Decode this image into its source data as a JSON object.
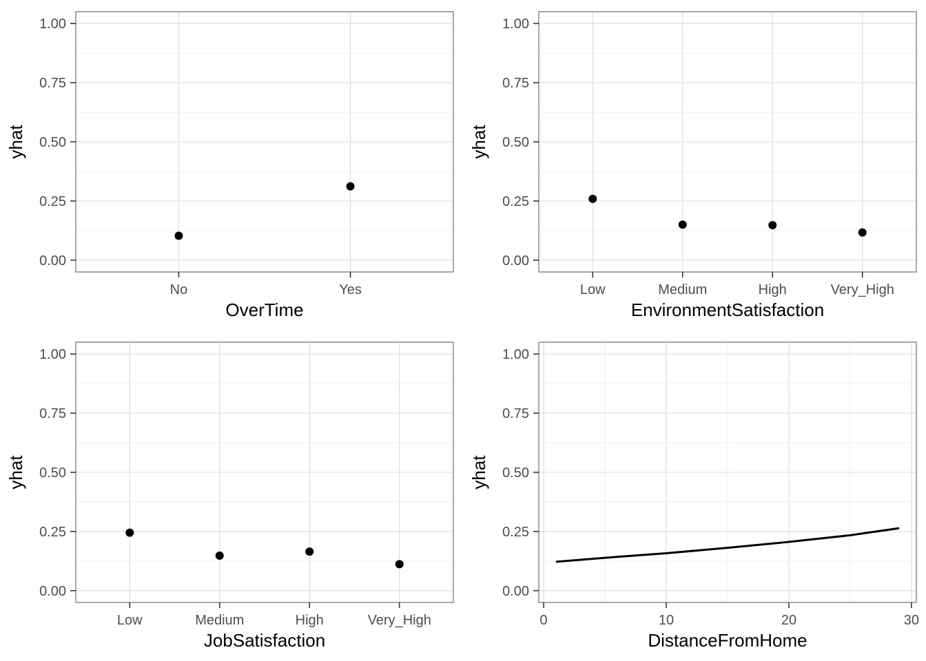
{
  "page": {
    "title": "Partial dependence plots grid",
    "background": "#ffffff"
  },
  "theme": {
    "panel_background": "#ffffff",
    "panel_border_color": "#919191",
    "grid_major_color": "#e0e0e0",
    "grid_minor_color": "#ececec",
    "tick_mark_color": "#333333",
    "tick_label_color": "#4d4d4d",
    "axis_title_color": "#000000",
    "point_color": "#000000",
    "line_color": "#000000"
  },
  "chart_data": [
    {
      "type": "scatter",
      "name": "overtime-pdp",
      "x_type": "categorical",
      "categories": [
        "No",
        "Yes"
      ],
      "values": [
        0.103,
        0.312
      ],
      "title": "",
      "xlabel": "OverTime",
      "ylabel": "yhat",
      "ylim": [
        0,
        1
      ],
      "yticks": [
        0.0,
        0.25,
        0.5,
        0.75,
        1.0
      ],
      "ytick_labels": [
        "0.00",
        "0.25",
        "0.50",
        "0.75",
        "1.00"
      ],
      "yminor": [
        0.125,
        0.375,
        0.625,
        0.875
      ],
      "grid": "on",
      "legend": "none"
    },
    {
      "type": "scatter",
      "name": "environment-satisfaction-pdp",
      "x_type": "categorical",
      "categories": [
        "Low",
        "Medium",
        "High",
        "Very_High"
      ],
      "values": [
        0.259,
        0.15,
        0.148,
        0.117
      ],
      "title": "",
      "xlabel": "EnvironmentSatisfaction",
      "ylabel": "yhat",
      "ylim": [
        0,
        1
      ],
      "yticks": [
        0.0,
        0.25,
        0.5,
        0.75,
        1.0
      ],
      "ytick_labels": [
        "0.00",
        "0.25",
        "0.50",
        "0.75",
        "1.00"
      ],
      "yminor": [
        0.125,
        0.375,
        0.625,
        0.875
      ],
      "grid": "on",
      "legend": "none"
    },
    {
      "type": "scatter",
      "name": "job-satisfaction-pdp",
      "x_type": "categorical",
      "categories": [
        "Low",
        "Medium",
        "High",
        "Very_High"
      ],
      "values": [
        0.245,
        0.148,
        0.165,
        0.112
      ],
      "title": "",
      "xlabel": "JobSatisfaction",
      "ylabel": "yhat",
      "ylim": [
        0,
        1
      ],
      "yticks": [
        0.0,
        0.25,
        0.5,
        0.75,
        1.0
      ],
      "ytick_labels": [
        "0.00",
        "0.25",
        "0.50",
        "0.75",
        "1.00"
      ],
      "yminor": [
        0.125,
        0.375,
        0.625,
        0.875
      ],
      "grid": "on",
      "legend": "none"
    },
    {
      "type": "line",
      "name": "distance-from-home-pdp",
      "x_type": "continuous",
      "x": [
        1,
        5,
        10,
        15,
        20,
        25,
        29
      ],
      "values": [
        0.122,
        0.139,
        0.158,
        0.181,
        0.206,
        0.234,
        0.264
      ],
      "title": "",
      "xlabel": "DistanceFromHome",
      "ylabel": "yhat",
      "xlim": [
        -0.4,
        30.4
      ],
      "xticks": [
        0,
        10,
        20,
        30
      ],
      "xtick_labels": [
        "0",
        "10",
        "20",
        "30"
      ],
      "xminor": [
        5,
        15,
        25
      ],
      "ylim": [
        0,
        1
      ],
      "yticks": [
        0.0,
        0.25,
        0.5,
        0.75,
        1.0
      ],
      "ytick_labels": [
        "0.00",
        "0.25",
        "0.50",
        "0.75",
        "1.00"
      ],
      "yminor": [
        0.125,
        0.375,
        0.625,
        0.875
      ],
      "grid": "on",
      "legend": "none"
    }
  ]
}
